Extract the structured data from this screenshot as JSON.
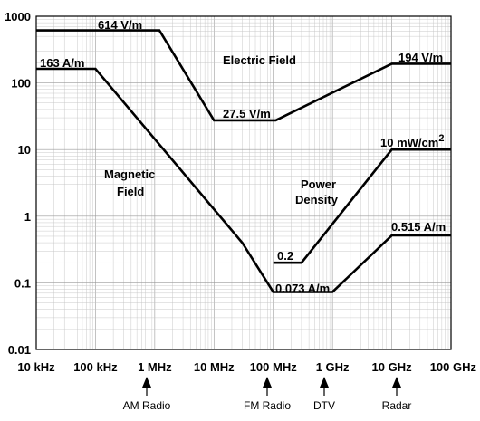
{
  "chart_data": {
    "type": "line",
    "x_scale": "log",
    "y_scale": "log",
    "xlim": [
      "10 kHz",
      "100 GHz"
    ],
    "ylim": [
      0.01,
      1000
    ],
    "x_tick_labels": [
      "10 kHz",
      "100 kHz",
      "1 MHz",
      "10 MHz",
      "100 MHz",
      "1 GHz",
      "10 GHz",
      "100 GHz"
    ],
    "y_tick_labels": [
      "0.01",
      "0.1",
      "1",
      "10",
      "100",
      "1000"
    ],
    "grid": true,
    "series": [
      {
        "name": "Electric Field",
        "points": [
          {
            "x": "10 kHz",
            "y": 614
          },
          {
            "x": "1.2 MHz",
            "y": 614
          },
          {
            "x": "10 MHz",
            "y": 27.5
          },
          {
            "x": "110 MHz",
            "y": 27.5
          },
          {
            "x": "10 GHz",
            "y": 194
          },
          {
            "x": "100 GHz",
            "y": 194
          }
        ]
      },
      {
        "name": "Magnetic Field",
        "points": [
          {
            "x": "10 kHz",
            "y": 163
          },
          {
            "x": "100 kHz",
            "y": 163
          },
          {
            "x": "30 MHz",
            "y": 0.4
          },
          {
            "x": "100 MHz",
            "y": 0.073
          },
          {
            "x": "1 GHz",
            "y": 0.073
          },
          {
            "x": "10 GHz",
            "y": 0.515
          },
          {
            "x": "100 GHz",
            "y": 0.515
          }
        ]
      },
      {
        "name": "Power Density",
        "points": [
          {
            "x": "100 MHz",
            "y": 0.2
          },
          {
            "x": "300 MHz",
            "y": 0.2
          },
          {
            "x": "10 GHz",
            "y": 10
          },
          {
            "x": "100 GHz",
            "y": 10
          }
        ]
      }
    ],
    "annotations": [
      {
        "text": "614 V/m",
        "id": "e-low"
      },
      {
        "text": "163 A/m",
        "id": "h-low"
      },
      {
        "text": "Electric Field",
        "id": "e-name"
      },
      {
        "text": "194 V/m",
        "id": "e-high"
      },
      {
        "text": "27.5 V/m",
        "id": "e-min"
      },
      {
        "text": "10 mW/cm",
        "superscript": "2",
        "id": "p-high"
      },
      {
        "text": "Magnetic",
        "id": "h-name-1"
      },
      {
        "text": "Field",
        "id": "h-name-2"
      },
      {
        "text": "Power",
        "id": "p-name-1"
      },
      {
        "text": "Density",
        "id": "p-name-2"
      },
      {
        "text": "0.2",
        "id": "p-low"
      },
      {
        "text": "0.515 A/m",
        "id": "h-high"
      },
      {
        "text": "0.073 A/m",
        "id": "h-min"
      }
    ],
    "bands": [
      {
        "label": "AM Radio",
        "x": "1 MHz"
      },
      {
        "label": "FM Radio",
        "x": "100 MHz"
      },
      {
        "label": "DTV",
        "x": "600 MHz"
      },
      {
        "label": "Radar",
        "x": "10 GHz"
      }
    ]
  }
}
